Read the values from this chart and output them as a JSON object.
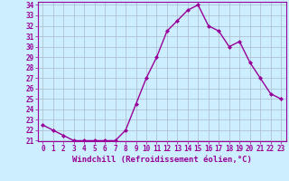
{
  "x": [
    0,
    1,
    2,
    3,
    4,
    5,
    6,
    7,
    8,
    9,
    10,
    11,
    12,
    13,
    14,
    15,
    16,
    17,
    18,
    19,
    20,
    21,
    22,
    23
  ],
  "y": [
    22.5,
    22.0,
    21.5,
    21.0,
    21.0,
    21.0,
    21.0,
    21.0,
    22.0,
    24.5,
    27.0,
    29.0,
    31.5,
    32.5,
    33.5,
    34.0,
    32.0,
    31.5,
    30.0,
    30.5,
    28.5,
    27.0,
    25.5,
    25.0
  ],
  "line_color": "#990099",
  "marker": "D",
  "marker_size": 2.0,
  "bg_color": "#cceeff",
  "grid_color": "#aabbcc",
  "xlabel": "Windchill (Refroidissement éolien,°C)",
  "ylim": [
    21,
    34
  ],
  "xlim": [
    -0.5,
    23.5
  ],
  "yticks": [
    21,
    22,
    23,
    24,
    25,
    26,
    27,
    28,
    29,
    30,
    31,
    32,
    33,
    34
  ],
  "xticks": [
    0,
    1,
    2,
    3,
    4,
    5,
    6,
    7,
    8,
    9,
    10,
    11,
    12,
    13,
    14,
    15,
    16,
    17,
    18,
    19,
    20,
    21,
    22,
    23
  ],
  "tick_fontsize": 5.5,
  "xlabel_fontsize": 6.5,
  "linewidth": 1.0
}
